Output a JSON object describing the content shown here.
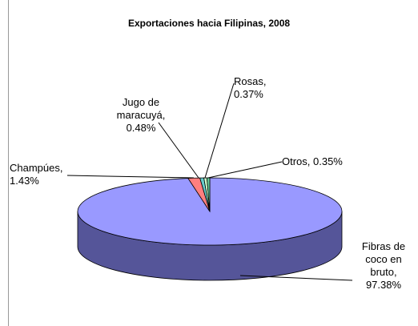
{
  "chart_data": {
    "type": "pie3d",
    "title": "Exportaciones hacia Filipinas, 2008",
    "categories": [
      "Fibras de coco en bruto",
      "Champúes",
      "Jugo de maracuyá",
      "Rosas",
      "Otros"
    ],
    "values": [
      97.38,
      1.43,
      0.48,
      0.37,
      0.35
    ],
    "value_labels": [
      "Fibras de coco en bruto, 97.38%",
      "Champúes, 1.43%",
      "Jugo de maracuyá, 0.48%",
      "Rosas, 0.37%",
      "Otros, 0.35%"
    ],
    "colors": [
      "#9999ff",
      "#ff7f7f",
      "#66cccc",
      "#ccffcc",
      "#66cc99"
    ]
  }
}
